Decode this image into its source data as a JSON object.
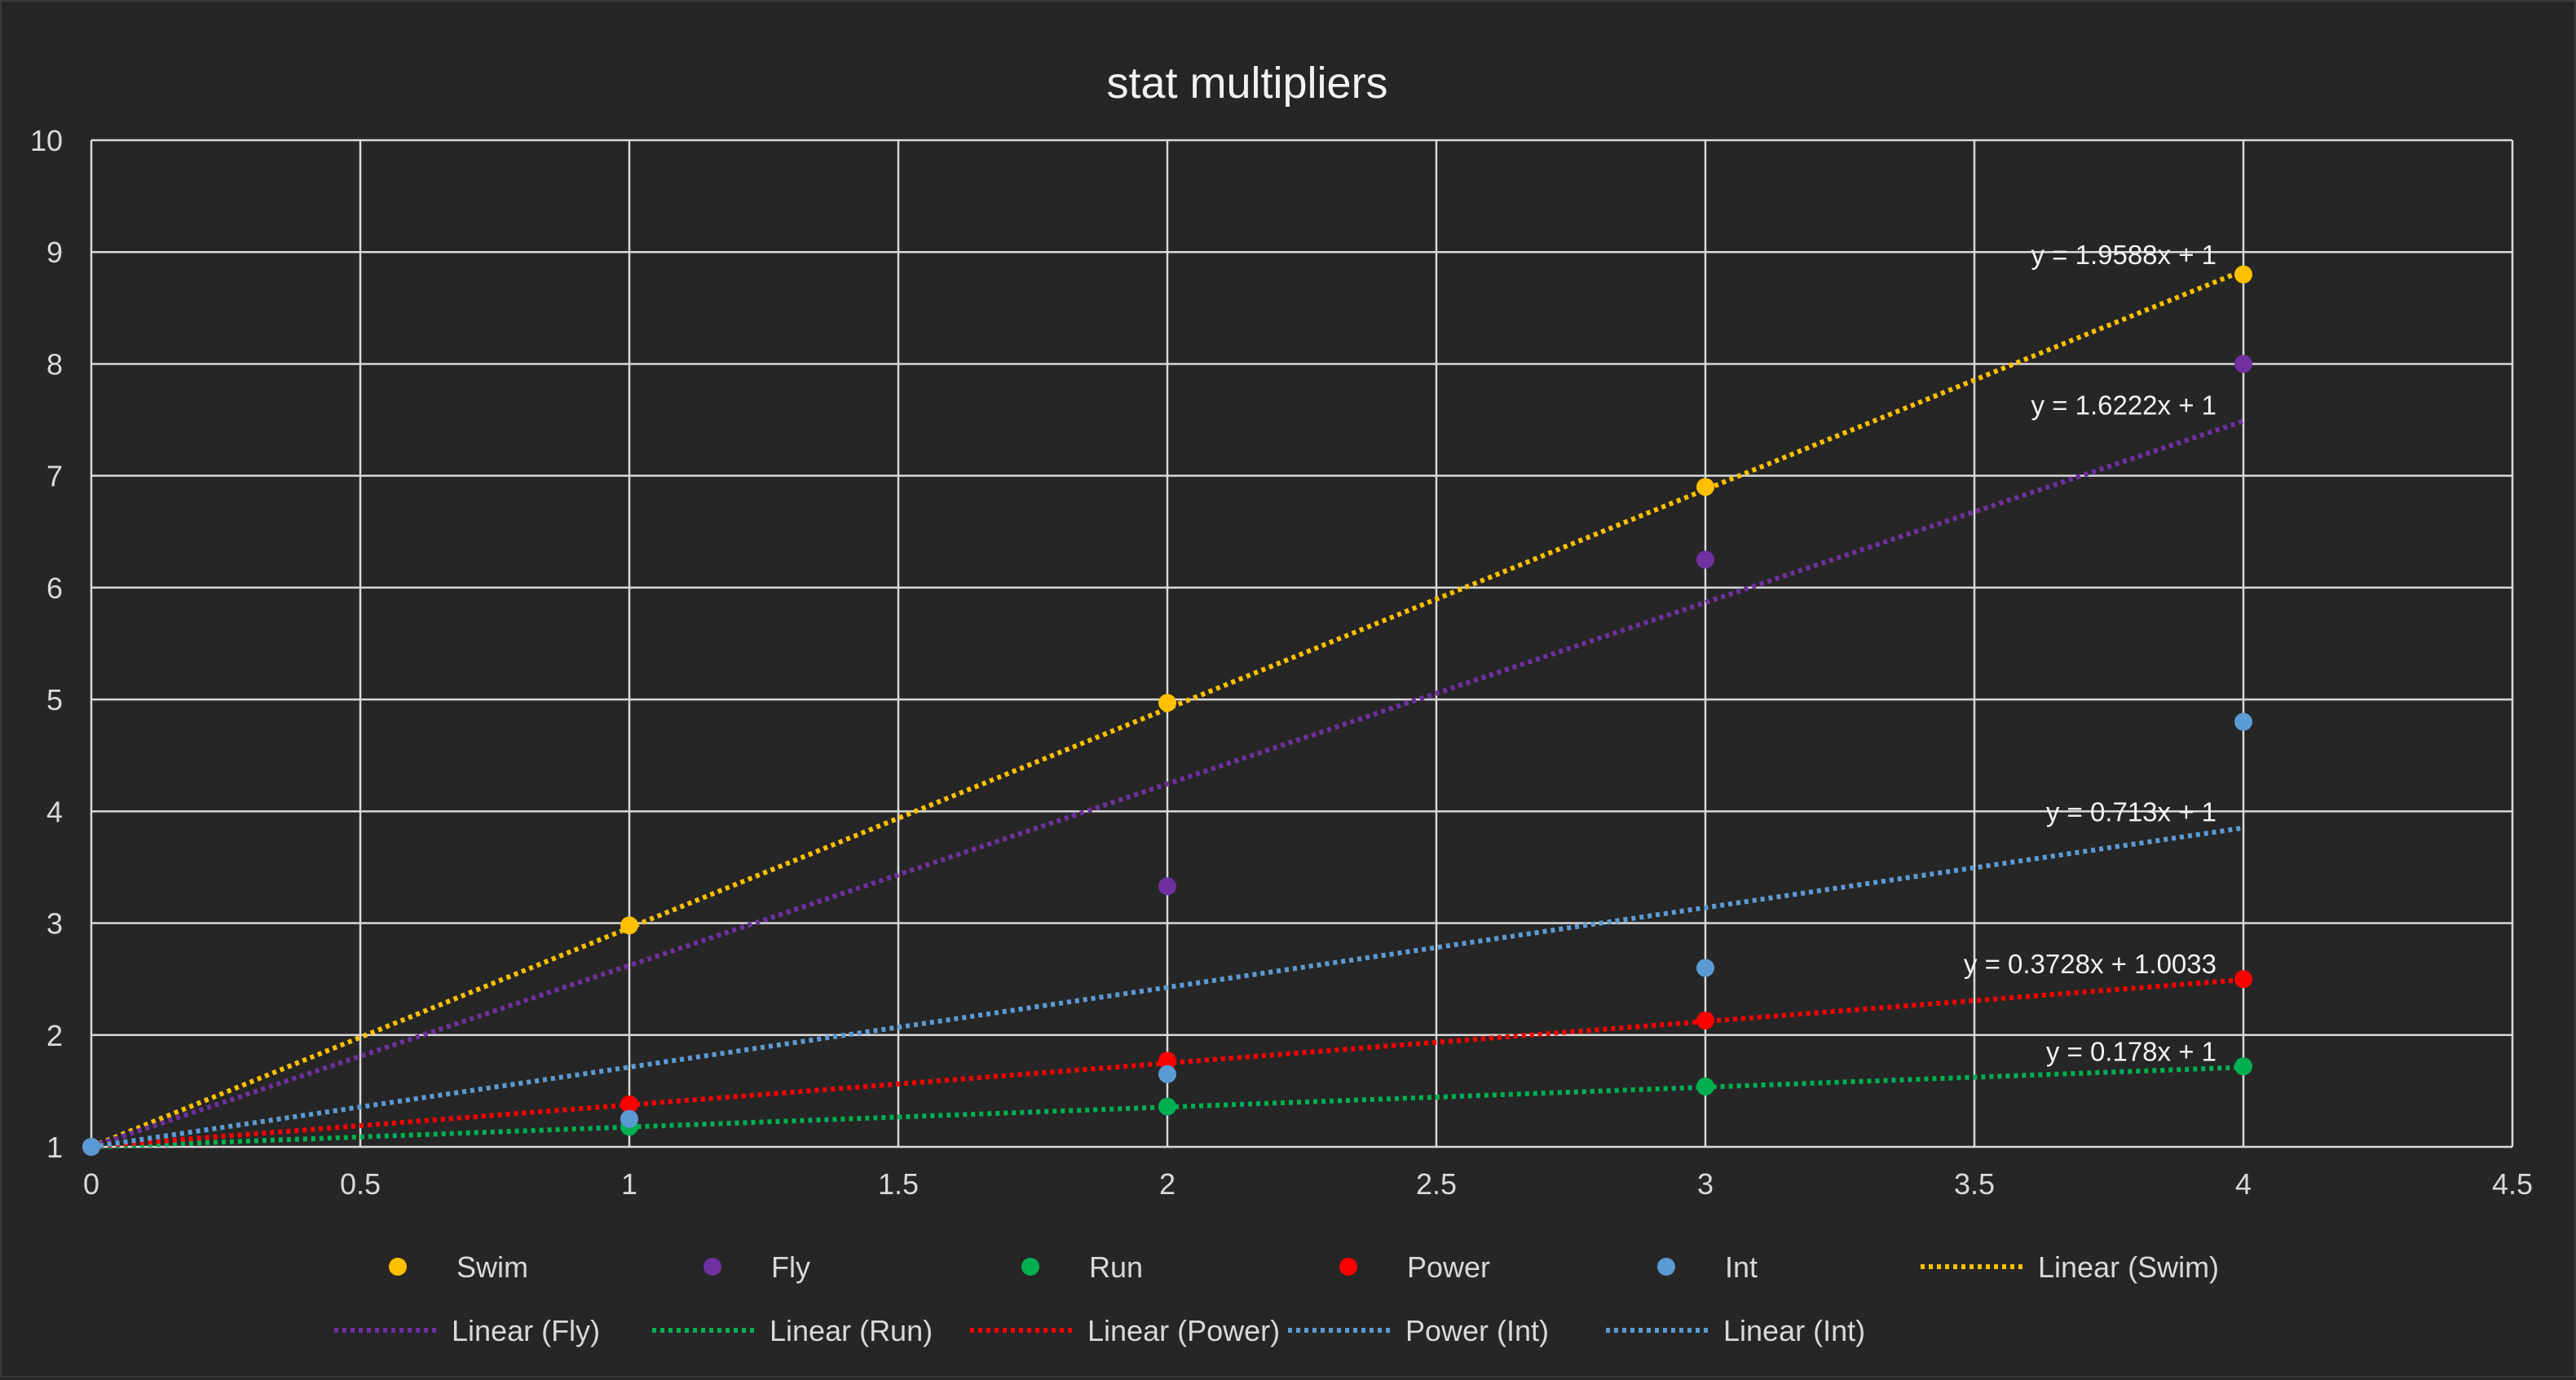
{
  "chart_data": {
    "type": "scatter",
    "title": "stat multipliers",
    "xlabel": "",
    "ylabel": "",
    "xlim": [
      0,
      4.5
    ],
    "ylim": [
      1,
      10
    ],
    "x_ticks": [
      0,
      0.5,
      1,
      1.5,
      2,
      2.5,
      3,
      3.5,
      4,
      4.5
    ],
    "x_tick_labels": [
      "0",
      "0.5",
      "1",
      "1.5",
      "2",
      "2.5",
      "3",
      "3.5",
      "4",
      "4.5"
    ],
    "y_ticks": [
      1,
      2,
      3,
      4,
      5,
      6,
      7,
      8,
      9,
      10
    ],
    "y_tick_labels": [
      "1",
      "2",
      "3",
      "4",
      "5",
      "6",
      "7",
      "8",
      "9",
      "10"
    ],
    "grid": true,
    "legend_position": "bottom",
    "background": "#262626",
    "series": [
      {
        "name": "Swim",
        "color": "#FFC000",
        "x": [
          0,
          1,
          2,
          3,
          4
        ],
        "y": [
          1,
          2.98,
          4.97,
          6.9,
          8.8
        ]
      },
      {
        "name": "Fly",
        "color": "#7030A0",
        "x": [
          0,
          1,
          2,
          3,
          4
        ],
        "y": [
          1,
          1.25,
          3.33,
          6.25,
          8.0
        ]
      },
      {
        "name": "Run",
        "color": "#00B050",
        "x": [
          0,
          1,
          2,
          3,
          4
        ],
        "y": [
          1,
          1.18,
          1.36,
          1.54,
          1.72
        ]
      },
      {
        "name": "Power",
        "color": "#FF0000",
        "x": [
          0,
          1,
          2,
          3,
          4
        ],
        "y": [
          1,
          1.38,
          1.77,
          2.13,
          2.5
        ]
      },
      {
        "name": "Int",
        "color": "#5B9BD5",
        "x": [
          0,
          1,
          2,
          3,
          4
        ],
        "y": [
          1,
          1.25,
          1.65,
          2.6,
          4.8
        ]
      }
    ],
    "trendlines": [
      {
        "name": "Linear (Swim)",
        "color": "#FFC000",
        "kind": "linear",
        "slope": 1.9588,
        "intercept": 1,
        "x_range": [
          0,
          4
        ],
        "equation": "y = 1.9588x + 1"
      },
      {
        "name": "Linear (Fly)",
        "color": "#7030A0",
        "kind": "linear",
        "slope": 1.6222,
        "intercept": 1,
        "x_range": [
          0,
          4
        ],
        "equation": "y = 1.6222x + 1"
      },
      {
        "name": "Linear (Run)",
        "color": "#00B050",
        "kind": "linear",
        "slope": 0.178,
        "intercept": 1,
        "x_range": [
          0,
          4
        ],
        "equation": "y = 0.178x + 1"
      },
      {
        "name": "Linear (Power)",
        "color": "#FF0000",
        "kind": "linear",
        "slope": 0.3728,
        "intercept": 1.0033,
        "x_range": [
          0,
          4
        ],
        "equation": "y = 0.3728x + 1.0033"
      },
      {
        "name": "Power (Int)",
        "color": "#5B9BD5",
        "kind": "power",
        "x_range": [
          0,
          4
        ],
        "equation": ""
      },
      {
        "name": "Linear (Int)",
        "color": "#5B9BD5",
        "kind": "linear",
        "slope": 0.713,
        "intercept": 1,
        "x_range": [
          0,
          4
        ],
        "equation": "y = 0.713x + 1"
      }
    ],
    "legend": [
      {
        "label": "Swim",
        "kind": "marker",
        "color": "#FFC000"
      },
      {
        "label": "Fly",
        "kind": "marker",
        "color": "#7030A0"
      },
      {
        "label": "Run",
        "kind": "marker",
        "color": "#00B050"
      },
      {
        "label": "Power",
        "kind": "marker",
        "color": "#FF0000"
      },
      {
        "label": "Int",
        "kind": "marker",
        "color": "#5B9BD5"
      },
      {
        "label": "Linear (Swim)",
        "kind": "line",
        "color": "#FFC000"
      },
      {
        "label": "Linear (Fly)",
        "kind": "line",
        "color": "#7030A0"
      },
      {
        "label": "Linear (Run)",
        "kind": "line",
        "color": "#00B050"
      },
      {
        "label": "Linear (Power)",
        "kind": "line",
        "color": "#FF0000"
      },
      {
        "label": "Power (Int)",
        "kind": "line",
        "color": "#5B9BD5"
      },
      {
        "label": "Linear (Int)",
        "kind": "line",
        "color": "#5B9BD5"
      }
    ]
  }
}
